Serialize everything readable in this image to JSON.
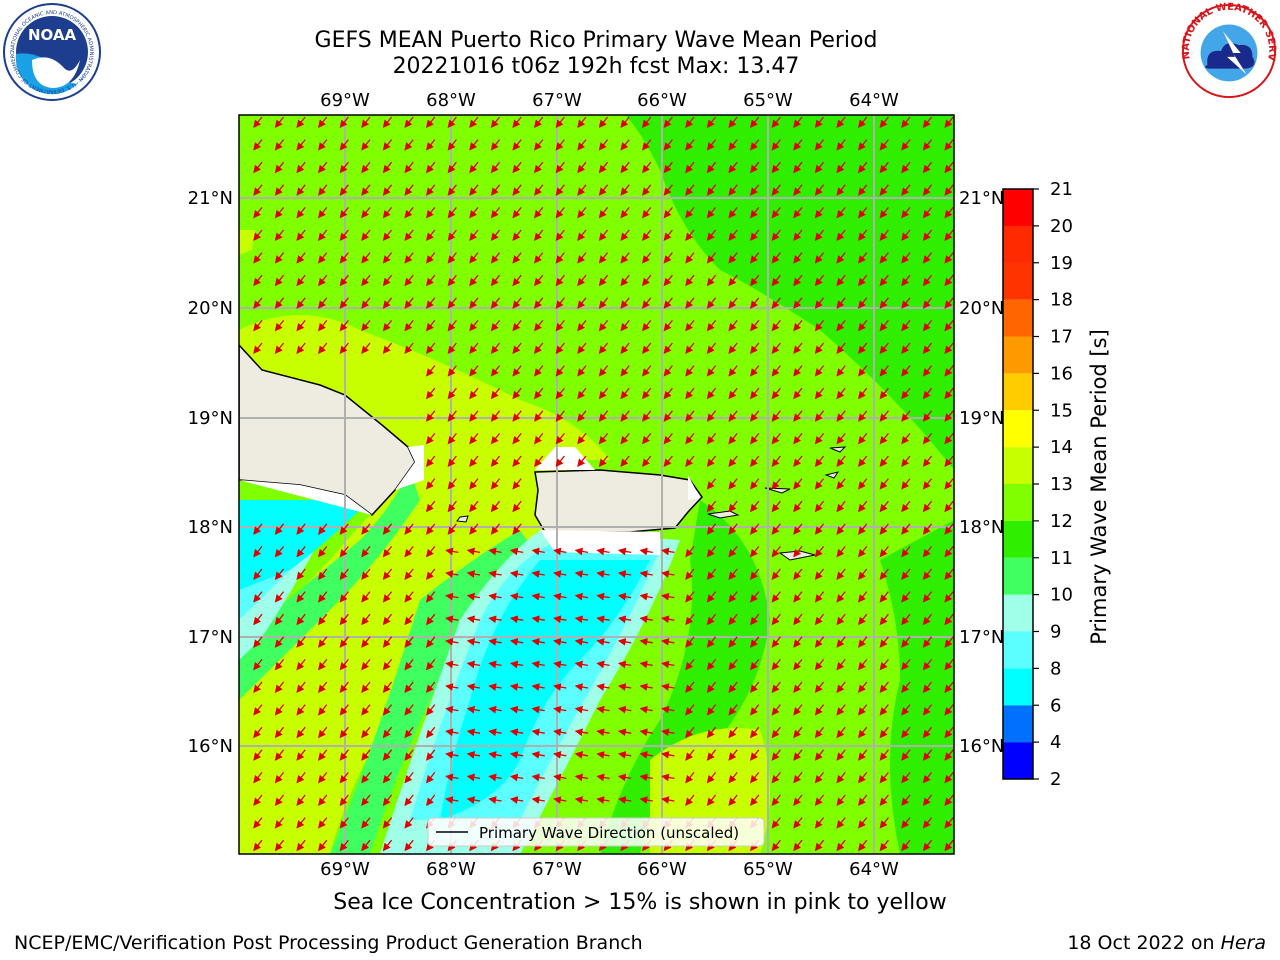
{
  "header": {
    "title_line1": "GEFS MEAN Puerto Rico Primary Wave Mean Period",
    "title_line2": "20221016 t06z 192h fcst   Max: 13.47"
  },
  "logos": {
    "left": "NOAA",
    "left_ring_text": "NATIONAL OCEANIC AND ATMOSPHERIC ADMINISTRATION · U.S. DEPARTMENT OF COMMERCE",
    "right_ring_text": "NATIONAL WEATHER SERVICE"
  },
  "map": {
    "lon_labels": [
      "69°W",
      "68°W",
      "67°W",
      "66°W",
      "65°W",
      "64°W"
    ],
    "lat_labels": [
      "21°N",
      "20°N",
      "19°N",
      "18°N",
      "17°N",
      "16°N"
    ],
    "legend_label": "Primary Wave Direction (unscaled)",
    "arrow_color": "#e00000",
    "land_color": "#eeece0"
  },
  "colorbar": {
    "label": "Primary Wave Mean Period [s]",
    "ticks": [
      "2",
      "4",
      "6",
      "8",
      "9",
      "10",
      "11",
      "12",
      "13",
      "14",
      "15",
      "16",
      "17",
      "18",
      "19",
      "20",
      "21"
    ],
    "colors": [
      "#0000ff",
      "#0070ff",
      "#00ffff",
      "#5cffff",
      "#a0ffe8",
      "#40ff60",
      "#30ee00",
      "#80ff00",
      "#c8ff00",
      "#ffff00",
      "#ffcc00",
      "#ff9900",
      "#ff6600",
      "#ff3300",
      "#ff0000"
    ]
  },
  "footer": {
    "ice_note": "Sea Ice Concentration > 15% is shown in pink to yellow",
    "left": "NCEP/EMC/Verification Post Processing Product Generation Branch",
    "right_date": "18 Oct 2022 on",
    "right_machine": "Hera"
  }
}
